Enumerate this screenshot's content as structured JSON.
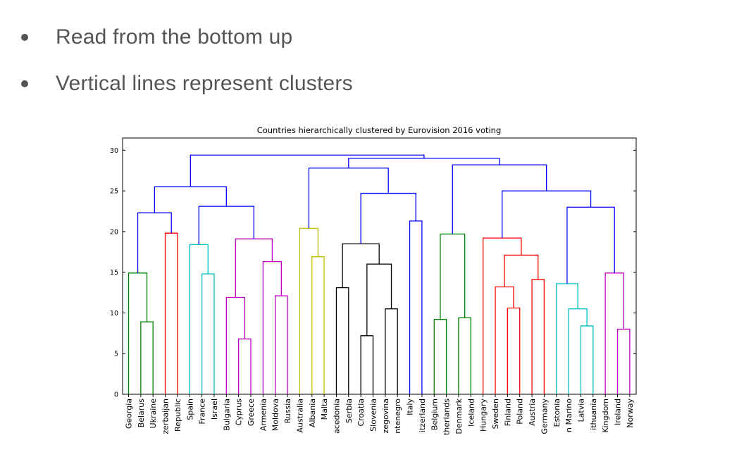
{
  "bullets": [
    {
      "text": "Read from the bottom up"
    },
    {
      "text": "Vertical lines represent clusters"
    }
  ],
  "chart_data": {
    "type": "dendrogram",
    "title": "Countries hierarchically clustered by Eurovision 2016 voting",
    "xlabel": "",
    "ylabel": "",
    "ylim": [
      0,
      31.5
    ],
    "yticks": [
      0,
      5,
      10,
      15,
      20,
      25,
      30
    ],
    "grid": false,
    "leaves": [
      "Georgia",
      "Belarus",
      "Ukraine",
      "Azerbaijan",
      "Republic",
      "Spain",
      "France",
      "Israel",
      "Bulgaria",
      "Cyprus",
      "Greece",
      "Armenia",
      "Moldova",
      "Russia",
      "Australia",
      "Albania",
      "Malta",
      "Macedonia",
      "Serbia",
      "Croatia",
      "Slovenia",
      "Herzegovina",
      "Montenegro",
      "Italy",
      "Switzerland",
      "Belgium",
      "Netherlands",
      "Denmark",
      "Iceland",
      "Hungary",
      "Sweden",
      "Finland",
      "Poland",
      "Austria",
      "Germany",
      "Estonia",
      "San Marino",
      "Latvia",
      "Lithuania",
      "Kingdom",
      "Ireland",
      "Norway"
    ],
    "leaf_labels_shown": [
      "Georgia",
      "Belarus",
      "Ukraine",
      "zerbaijan",
      "Republic",
      "Spain",
      "France",
      "Israel",
      "Bulgaria",
      "Cyprus",
      "Greece",
      "Armenia",
      "Moldova",
      "Russia",
      "Australia",
      "Albania",
      "Malta",
      "acedonia",
      "Serbia",
      "Croatia",
      "Slovenia",
      "zegovina",
      "ntenegro",
      "Italy",
      "itzerland",
      "Belgium",
      "therlands",
      "Denmark",
      "Iceland",
      "Hungary",
      "Sweden",
      "Finland",
      "Poland",
      "Austria",
      "Germany",
      "Estonia",
      "n Marino",
      "Latvia",
      "ithuania",
      "Kingdom",
      "Ireland",
      "Norway"
    ],
    "colors": {
      "green": "#008000",
      "red": "#ff0000",
      "cyan": "#00bfbf",
      "magenta": "#bf00bf",
      "yellow": "#bfbf00",
      "black": "#000000",
      "blue": "#0000ff"
    },
    "merges": [
      {
        "a": "L1",
        "b": "L2",
        "h": 8.9,
        "color": "green"
      },
      {
        "a": "L0",
        "b": "M0",
        "h": 14.9,
        "color": "green"
      },
      {
        "a": "L3",
        "b": "L4",
        "h": 19.8,
        "color": "red"
      },
      {
        "a": "M1",
        "b": "M2",
        "h": 22.3,
        "color": "blue"
      },
      {
        "a": "L6",
        "b": "L7",
        "h": 14.8,
        "color": "cyan"
      },
      {
        "a": "L5",
        "b": "M4",
        "h": 18.4,
        "color": "cyan"
      },
      {
        "a": "L9",
        "b": "L10",
        "h": 6.8,
        "color": "magenta"
      },
      {
        "a": "L8",
        "b": "M6",
        "h": 11.9,
        "color": "magenta"
      },
      {
        "a": "L12",
        "b": "L13",
        "h": 12.1,
        "color": "magenta"
      },
      {
        "a": "L11",
        "b": "M8",
        "h": 16.3,
        "color": "magenta"
      },
      {
        "a": "M7",
        "b": "M9",
        "h": 19.1,
        "color": "magenta"
      },
      {
        "a": "M5",
        "b": "M10",
        "h": 23.1,
        "color": "blue"
      },
      {
        "a": "M3",
        "b": "M11",
        "h": 25.5,
        "color": "blue"
      },
      {
        "a": "L15",
        "b": "L16",
        "h": 16.9,
        "color": "yellow"
      },
      {
        "a": "L14",
        "b": "M13",
        "h": 20.4,
        "color": "yellow"
      },
      {
        "a": "L17",
        "b": "L18",
        "h": 13.1,
        "color": "black"
      },
      {
        "a": "L19",
        "b": "L20",
        "h": 7.2,
        "color": "black"
      },
      {
        "a": "L21",
        "b": "L22",
        "h": 10.5,
        "color": "black"
      },
      {
        "a": "M16",
        "b": "M17",
        "h": 16.0,
        "color": "black"
      },
      {
        "a": "M15",
        "b": "M18",
        "h": 18.5,
        "color": "black"
      },
      {
        "a": "L23",
        "b": "L24",
        "h": 21.3,
        "color": "blue"
      },
      {
        "a": "M19",
        "b": "M20",
        "h": 24.7,
        "color": "blue"
      },
      {
        "a": "M14",
        "b": "M21",
        "h": 27.8,
        "color": "blue"
      },
      {
        "a": "L25",
        "b": "L26",
        "h": 9.2,
        "color": "green"
      },
      {
        "a": "L27",
        "b": "L28",
        "h": 9.4,
        "color": "green"
      },
      {
        "a": "M23",
        "b": "M24",
        "h": 19.7,
        "color": "green"
      },
      {
        "a": "L31",
        "b": "L32",
        "h": 10.6,
        "color": "red"
      },
      {
        "a": "L30",
        "b": "M26",
        "h": 13.2,
        "color": "red"
      },
      {
        "a": "L33",
        "b": "L34",
        "h": 14.1,
        "color": "red"
      },
      {
        "a": "M27",
        "b": "M28",
        "h": 17.1,
        "color": "red"
      },
      {
        "a": "L29",
        "b": "M29",
        "h": 19.2,
        "color": "red"
      },
      {
        "a": "L37",
        "b": "L38",
        "h": 8.4,
        "color": "cyan"
      },
      {
        "a": "L36",
        "b": "M31",
        "h": 10.5,
        "color": "cyan"
      },
      {
        "a": "L35",
        "b": "M32",
        "h": 13.6,
        "color": "cyan"
      },
      {
        "a": "L40",
        "b": "L41",
        "h": 8.0,
        "color": "magenta"
      },
      {
        "a": "L39",
        "b": "M34",
        "h": 14.9,
        "color": "magenta"
      },
      {
        "a": "M33",
        "b": "M35",
        "h": 23.0,
        "color": "blue"
      },
      {
        "a": "M30",
        "b": "M36",
        "h": 25.0,
        "color": "blue"
      },
      {
        "a": "M25",
        "b": "M37",
        "h": 28.2,
        "color": "blue"
      },
      {
        "a": "M22",
        "b": "M38",
        "h": 29.0,
        "color": "blue"
      },
      {
        "a": "M12",
        "b": "M39",
        "h": 29.4,
        "color": "blue"
      }
    ]
  }
}
